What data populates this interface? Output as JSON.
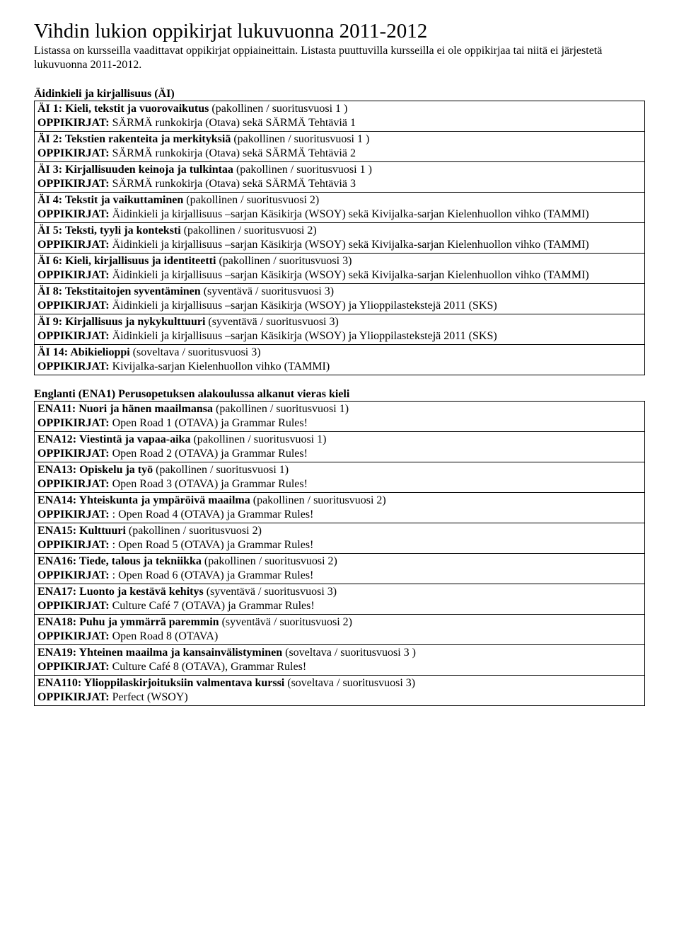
{
  "page": {
    "title": "Vihdin lukion oppikirjat lukuvuonna 2011-2012",
    "intro": "Listassa on kursseilla vaadittavat oppikirjat oppiaineittain. Listasta puuttuvilla kursseilla ei ole oppikirjaa tai niitä ei järjestetä lukuvuonna 2011-2012."
  },
  "sections": [
    {
      "heading": "Äidinkieli ja kirjallisuus (ÄI)",
      "rows": [
        [
          {
            "b": true,
            "t": "ÄI 1: Kieli, tekstit ja vuorovaikutus  "
          },
          {
            "b": false,
            "t": "(pakollinen / suoritusvuosi 1 )"
          },
          {
            "br": true
          },
          {
            "b": true,
            "t": "OPPIKIRJAT: "
          },
          {
            "b": false,
            "t": "SÄRMÄ runkokirja (Otava) sekä SÄRMÄ Tehtäviä 1"
          }
        ],
        [
          {
            "b": true,
            "t": "ÄI 2: Tekstien rakenteita ja merkityksiä "
          },
          {
            "b": false,
            "t": "(pakollinen / suoritusvuosi 1 )"
          },
          {
            "br": true
          },
          {
            "b": true,
            "t": "OPPIKIRJAT: "
          },
          {
            "b": false,
            "t": "SÄRMÄ runkokirja (Otava) sekä  SÄRMÄ Tehtäviä 2"
          }
        ],
        [
          {
            "b": true,
            "t": "ÄI 3: Kirjallisuuden keinoja ja tulkintaa "
          },
          {
            "b": false,
            "t": "(pakollinen / suoritusvuosi 1 )"
          },
          {
            "br": true
          },
          {
            "b": true,
            "t": "OPPIKIRJAT: "
          },
          {
            "b": false,
            "t": "SÄRMÄ runkokirja (Otava) sekä  SÄRMÄ Tehtäviä 3"
          }
        ],
        [
          {
            "b": true,
            "t": "ÄI 4: Tekstit ja vaikuttaminen "
          },
          {
            "b": false,
            "t": "(pakollinen / suoritusvuosi 2)"
          },
          {
            "br": true
          },
          {
            "b": true,
            "t": "OPPIKIRJAT: "
          },
          {
            "b": false,
            "t": "Äidinkieli ja kirjallisuus –sarjan Käsikirja (WSOY) sekä Kivijalka-sarjan Kielenhuollon vihko (TAMMI)"
          }
        ],
        [
          {
            "b": true,
            "t": "ÄI 5: Teksti, tyyli ja konteksti "
          },
          {
            "b": false,
            "t": "(pakollinen / suoritusvuosi 2)"
          },
          {
            "br": true
          },
          {
            "b": true,
            "t": "OPPIKIRJAT: "
          },
          {
            "b": false,
            "t": "Äidinkieli ja kirjallisuus –sarjan Käsikirja (WSOY) sekä Kivijalka-sarjan Kielenhuollon vihko (TAMMI)"
          }
        ],
        [
          {
            "b": true,
            "t": "ÄI 6: Kieli, kirjallisuus ja identiteetti "
          },
          {
            "b": false,
            "t": "(pakollinen / suoritusvuosi 3)"
          },
          {
            "br": true
          },
          {
            "b": true,
            "t": "OPPIKIRJAT: "
          },
          {
            "b": false,
            "t": "Äidinkieli ja kirjallisuus –sarjan Käsikirja (WSOY) sekä Kivijalka-sarjan Kielenhuollon vihko (TAMMI)"
          }
        ],
        [
          {
            "b": true,
            "t": "ÄI 8: Tekstitaitojen syventäminen "
          },
          {
            "b": false,
            "t": "(syventävä / suoritusvuosi 3)"
          },
          {
            "br": true
          },
          {
            "b": true,
            "t": "OPPIKIRJAT: "
          },
          {
            "b": false,
            "t": "Äidinkieli ja kirjallisuus –sarjan Käsikirja (WSOY) ja Ylioppilastekstejä 2011 (SKS)"
          }
        ],
        [
          {
            "b": true,
            "t": "ÄI 9: Kirjallisuus ja nykykulttuuri "
          },
          {
            "b": false,
            "t": "(syventävä / suoritusvuosi 3)"
          },
          {
            "br": true
          },
          {
            "b": true,
            "t": "OPPIKIRJAT: "
          },
          {
            "b": false,
            "t": "Äidinkieli ja kirjallisuus –sarjan Käsikirja (WSOY) ja Ylioppilastekstejä 2011 (SKS)"
          }
        ],
        [
          {
            "b": true,
            "t": "ÄI 14: Abikielioppi "
          },
          {
            "b": false,
            "t": "(soveltava / suoritusvuosi 3)"
          },
          {
            "br": true
          },
          {
            "b": true,
            "t": "OPPIKIRJAT: "
          },
          {
            "b": false,
            "t": "Kivijalka-sarjan Kielenhuollon vihko (TAMMI)"
          }
        ]
      ]
    },
    {
      "heading": "Englanti (ENA1) Perusopetuksen alakoulussa alkanut vieras kieli",
      "rows": [
        [
          {
            "b": true,
            "t": "ENA11: Nuori ja hänen maailmansa "
          },
          {
            "b": false,
            "t": "(pakollinen / suoritusvuosi 1)"
          },
          {
            "br": true
          },
          {
            "b": true,
            "t": "OPPIKIRJAT: "
          },
          {
            "b": false,
            "t": "Open Road 1 (OTAVA) ja Grammar Rules!"
          }
        ],
        [
          {
            "b": true,
            "t": "ENA12: Viestintä ja vapaa-aika "
          },
          {
            "b": false,
            "t": "(pakollinen / suoritusvuosi 1)"
          },
          {
            "br": true
          },
          {
            "b": true,
            "t": "OPPIKIRJAT: "
          },
          {
            "b": false,
            "t": "Open Road 2 (OTAVA) ja Grammar Rules!"
          }
        ],
        [
          {
            "b": true,
            "t": "ENA13: Opiskelu ja työ "
          },
          {
            "b": false,
            "t": "(pakollinen / suoritusvuosi 1)"
          },
          {
            "br": true
          },
          {
            "b": true,
            "t": "OPPIKIRJAT: "
          },
          {
            "b": false,
            "t": "Open Road 3 (OTAVA) ja Grammar Rules!"
          }
        ],
        [
          {
            "b": true,
            "t": "ENA14: Yhteiskunta ja ympäröivä maailma "
          },
          {
            "b": false,
            "t": "(pakollinen / suoritusvuosi 2)"
          },
          {
            "br": true
          },
          {
            "b": true,
            "t": "OPPIKIRJAT: "
          },
          {
            "b": false,
            "t": ": Open Road 4 (OTAVA) ja Grammar Rules!"
          }
        ],
        [
          {
            "b": true,
            "t": "ENA15: Kulttuuri "
          },
          {
            "b": false,
            "t": "(pakollinen / suoritusvuosi 2)"
          },
          {
            "br": true
          },
          {
            "b": true,
            "t": "OPPIKIRJAT: "
          },
          {
            "b": false,
            "t": ": Open Road 5 (OTAVA) ja Grammar Rules!"
          }
        ],
        [
          {
            "b": true,
            "t": "ENA16: Tiede, talous ja tekniikka "
          },
          {
            "b": false,
            "t": "(pakollinen / suoritusvuosi 2)"
          },
          {
            "br": true
          },
          {
            "b": true,
            "t": "OPPIKIRJAT: "
          },
          {
            "b": false,
            "t": ": Open Road 6 (OTAVA) ja Grammar Rules!"
          }
        ],
        [
          {
            "b": true,
            "t": "ENA17: Luonto ja kestävä kehitys "
          },
          {
            "b": false,
            "t": "(syventävä / suoritusvuosi 3)"
          },
          {
            "br": true
          },
          {
            "b": true,
            "t": "OPPIKIRJAT: "
          },
          {
            "b": false,
            "t": "Culture Café 7 (OTAVA) ja Grammar Rules!"
          }
        ],
        [
          {
            "b": true,
            "t": "ENA18: Puhu ja ymmärrä paremmin "
          },
          {
            "b": false,
            "t": "(syventävä / suoritusvuosi 2)"
          },
          {
            "br": true
          },
          {
            "b": true,
            "t": "OPPIKIRJAT: "
          },
          {
            "b": false,
            "t": "Open Road 8 (OTAVA)"
          }
        ],
        [
          {
            "b": true,
            "t": "ENA19: Yhteinen maailma ja kansainvälistyminen "
          },
          {
            "b": false,
            "t": "(soveltava / suoritusvuosi 3 )"
          },
          {
            "br": true
          },
          {
            "b": true,
            "t": "OPPIKIRJAT: "
          },
          {
            "b": false,
            "t": "Culture Café 8 (OTAVA), Grammar Rules!"
          }
        ],
        [
          {
            "b": true,
            "t": "ENA110: Ylioppilaskirjoituksiin valmentava kurssi "
          },
          {
            "b": false,
            "t": "(soveltava / suoritusvuosi 3)"
          },
          {
            "br": true
          },
          {
            "b": true,
            "t": "OPPIKIRJAT: "
          },
          {
            "b": false,
            "t": "Perfect (WSOY)"
          }
        ]
      ]
    }
  ]
}
